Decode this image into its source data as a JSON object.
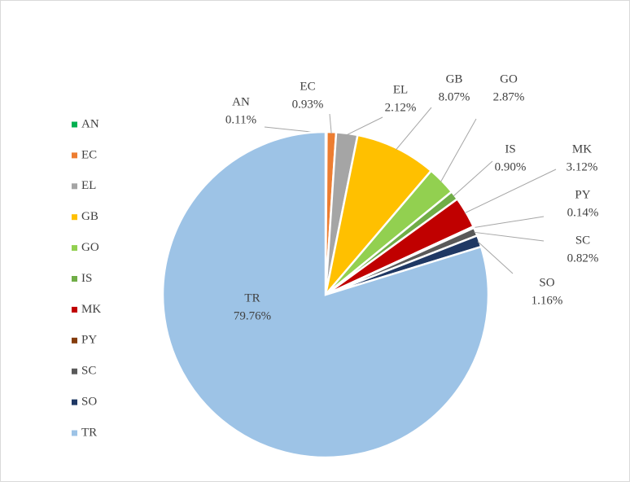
{
  "chart_data": {
    "type": "pie",
    "categories": [
      "AN",
      "EC",
      "EL",
      "GB",
      "GO",
      "IS",
      "MK",
      "PY",
      "SC",
      "SO",
      "TR"
    ],
    "values": [
      0.11,
      0.93,
      2.12,
      8.07,
      2.87,
      0.9,
      3.12,
      0.14,
      0.82,
      1.16,
      79.76
    ],
    "value_labels": [
      "0.11%",
      "0.93%",
      "2.12%",
      "8.07%",
      "2.87%",
      "0.90%",
      "3.12%",
      "0.14%",
      "0.82%",
      "1.16%",
      "79.76%"
    ],
    "colors": [
      "#00b050",
      "#ed7d31",
      "#a5a5a5",
      "#ffc000",
      "#92d050",
      "#70ad47",
      "#c00000",
      "#843c0c",
      "#595959",
      "#1f3864",
      "#9dc3e6"
    ],
    "legend": "left"
  }
}
